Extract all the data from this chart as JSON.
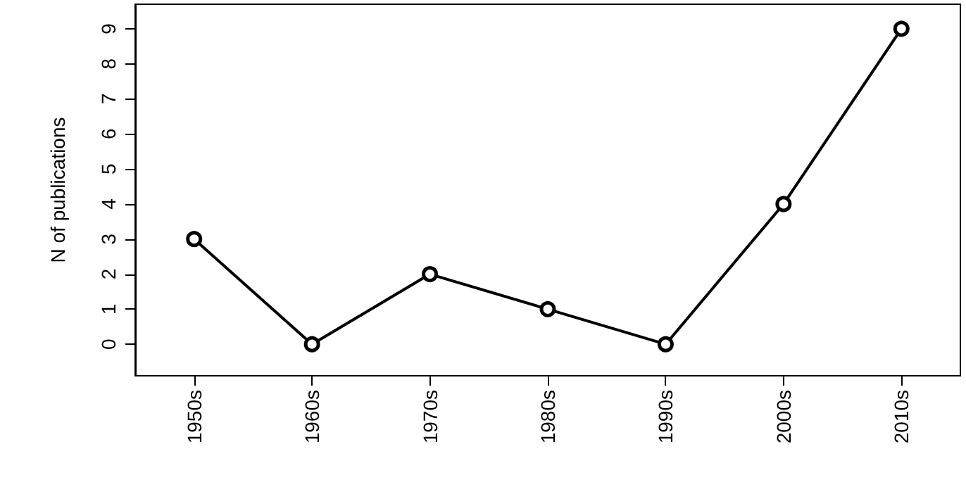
{
  "chart_data": {
    "type": "line",
    "ylabel": "N of publications",
    "categories": [
      "1950s",
      "1960s",
      "1970s",
      "1980s",
      "1990s",
      "2000s",
      "2010s"
    ],
    "series": [
      {
        "color": "#000000",
        "values": [
          3,
          0,
          2,
          1,
          0,
          4,
          9
        ]
      }
    ],
    "ylim": [
      -0.9,
      9.7
    ],
    "yticks": [
      0,
      1,
      2,
      3,
      4,
      5,
      6,
      7,
      8,
      9
    ],
    "grid": false,
    "marker": "circle",
    "line_style": "solid"
  }
}
